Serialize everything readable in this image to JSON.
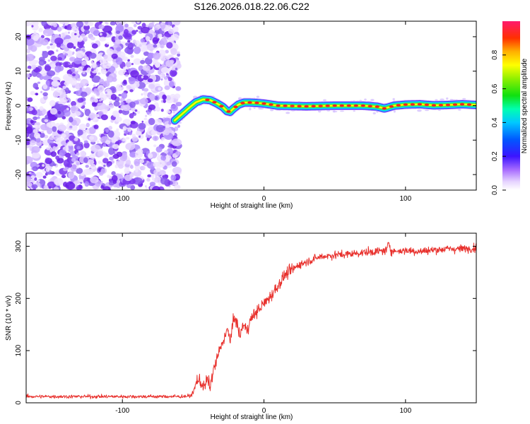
{
  "title": "S126.2026.018.22.06.C22",
  "colors": {
    "snr_line": "#e8302c",
    "axis": "#000000",
    "noise_purple": "#8a3cf0"
  },
  "chart_data": [
    {
      "type": "heatmap",
      "xlabel": "Height of straight line (km)",
      "ylabel": "Frequency (Hz)",
      "xlim": [
        -168,
        150
      ],
      "ylim": [
        -24.5,
        24.5
      ],
      "x_ticks": [
        -100,
        0,
        100
      ],
      "x_tick_labels": [
        "-100",
        "0",
        "100"
      ],
      "y_ticks": [
        -20,
        -10,
        0,
        10,
        20
      ],
      "y_tick_labels": [
        "-20",
        "-10",
        "0",
        "10",
        "20"
      ],
      "noise_region_x": [
        -168,
        -60
      ],
      "signal_trace": {
        "x": [
          -63,
          -58,
          -52,
          -48,
          -43,
          -38,
          -33,
          -29,
          -26,
          -24,
          -22,
          -18,
          -14,
          -10,
          -5,
          0,
          10,
          30,
          50,
          70,
          80,
          85,
          88,
          92,
          100,
          110,
          120,
          130,
          140,
          150
        ],
        "freq_hz": [
          -4.3,
          -2.5,
          -0.3,
          1.0,
          1.8,
          1.6,
          0.6,
          -0.4,
          -1.6,
          -1.8,
          -1.0,
          0.3,
          0.9,
          0.9,
          0.8,
          0.6,
          0.0,
          -0.2,
          0.0,
          0.0,
          -0.3,
          -0.8,
          -0.5,
          0.0,
          0.3,
          0.4,
          0.1,
          0.2,
          0.4,
          0.2
        ]
      },
      "colorbar": {
        "label": "Normalized spectral amplitude",
        "range": [
          0.0,
          1.0
        ],
        "ticks": [
          0.0,
          0.2,
          0.4,
          0.6,
          0.8
        ],
        "tick_labels": [
          "0.0",
          "0.2",
          "0.4",
          "0.6",
          "0.8"
        ]
      }
    },
    {
      "type": "line",
      "xlabel": "Height of straight line (km)",
      "ylabel": "SNR (10 * v/v)",
      "xlim": [
        -168,
        150
      ],
      "ylim": [
        0,
        325
      ],
      "x_ticks": [
        -100,
        0,
        100
      ],
      "x_tick_labels": [
        "-100",
        "0",
        "100"
      ],
      "y_ticks": [
        0,
        100,
        200,
        300
      ],
      "y_tick_labels": [
        "0",
        "100",
        "200",
        "300"
      ],
      "series": [
        {
          "name": "SNR",
          "x": [
            -168,
            -150,
            -120,
            -90,
            -60,
            -52,
            -50,
            -47,
            -45,
            -42,
            -40,
            -38,
            -36,
            -34,
            -32,
            -30,
            -28,
            -26,
            -24,
            -22,
            -20,
            -17,
            -15,
            -12,
            -10,
            -8,
            -5,
            0,
            5,
            10,
            15,
            20,
            25,
            30,
            35,
            40,
            50,
            60,
            70,
            80,
            87,
            88,
            90,
            100,
            110,
            120,
            130,
            140,
            150
          ],
          "mean": [
            12,
            12,
            12,
            12,
            12,
            13,
            20,
            45,
            40,
            30,
            45,
            30,
            60,
            75,
            95,
            110,
            125,
            140,
            120,
            150,
            165,
            125,
            150,
            140,
            155,
            165,
            175,
            190,
            205,
            225,
            245,
            255,
            265,
            270,
            275,
            280,
            283,
            285,
            288,
            290,
            292,
            310,
            290,
            292,
            290,
            293,
            295,
            295,
            297
          ]
        }
      ]
    }
  ]
}
